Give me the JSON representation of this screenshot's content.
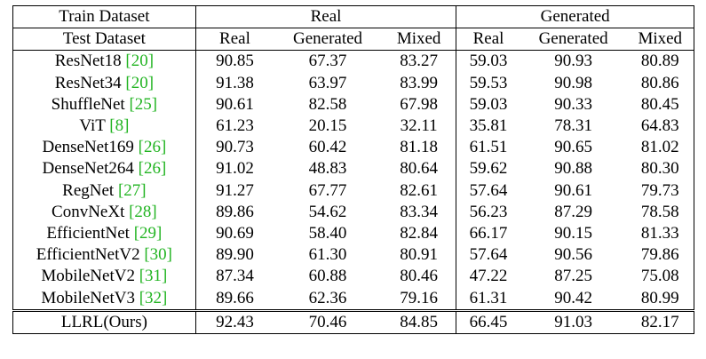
{
  "header": {
    "row1": {
      "label": "Train Dataset",
      "group_real": "Real",
      "group_generated": "Generated"
    },
    "row2": {
      "label": "Test Dataset",
      "cols": [
        "Real",
        "Generated",
        "Mixed",
        "Real",
        "Generated",
        "Mixed"
      ]
    }
  },
  "rows": [
    {
      "name": "ResNet18 ",
      "ref": "[20]",
      "values": [
        "90.85",
        "67.37",
        "83.27",
        "59.03",
        "90.93",
        "80.89"
      ]
    },
    {
      "name": "ResNet34 ",
      "ref": "[20]",
      "values": [
        "91.38",
        "63.97",
        "83.99",
        "59.53",
        "90.98",
        "80.86"
      ]
    },
    {
      "name": "ShuffleNet ",
      "ref": "[25]",
      "values": [
        "90.61",
        "82.58",
        "67.98",
        "59.03",
        "90.33",
        "80.45"
      ]
    },
    {
      "name": "ViT ",
      "ref": "[8]",
      "values": [
        "61.23",
        "20.15",
        "32.11",
        "35.81",
        "78.31",
        "64.83"
      ]
    },
    {
      "name": "DenseNet169 ",
      "ref": "[26]",
      "values": [
        "90.73",
        "60.42",
        "81.18",
        "61.51",
        "90.65",
        "81.02"
      ]
    },
    {
      "name": "DenseNet264 ",
      "ref": "[26]",
      "values": [
        "91.02",
        "48.83",
        "80.64",
        "59.62",
        "90.88",
        "80.30"
      ]
    },
    {
      "name": "RegNet ",
      "ref": "[27]",
      "values": [
        "91.27",
        "67.77",
        "82.61",
        "57.64",
        "90.61",
        "79.73"
      ]
    },
    {
      "name": "ConvNeXt ",
      "ref": "[28]",
      "values": [
        "89.86",
        "54.62",
        "83.34",
        "56.23",
        "87.29",
        "78.58"
      ]
    },
    {
      "name": "EfficientNet ",
      "ref": "[29]",
      "values": [
        "90.69",
        "58.40",
        "82.84",
        "66.17",
        "90.15",
        "81.33"
      ]
    },
    {
      "name": "EfficientNetV2 ",
      "ref": "[30]",
      "values": [
        "89.90",
        "61.30",
        "80.91",
        "57.64",
        "90.56",
        "79.86"
      ]
    },
    {
      "name": "MobileNetV2 ",
      "ref": "[31]",
      "values": [
        "87.34",
        "60.88",
        "80.46",
        "47.22",
        "87.25",
        "75.08"
      ]
    },
    {
      "name": "MobileNetV3 ",
      "ref": "[32]",
      "values": [
        "89.66",
        "62.36",
        "79.16",
        "61.31",
        "90.42",
        "80.99"
      ]
    }
  ],
  "final_row": {
    "name": "LLRL(Ours)",
    "values": [
      "92.43",
      "70.46",
      "84.85",
      "66.45",
      "91.03",
      "82.17"
    ]
  },
  "colors": {
    "reference": "#22b422",
    "text": "#000000",
    "background": "#ffffff"
  }
}
